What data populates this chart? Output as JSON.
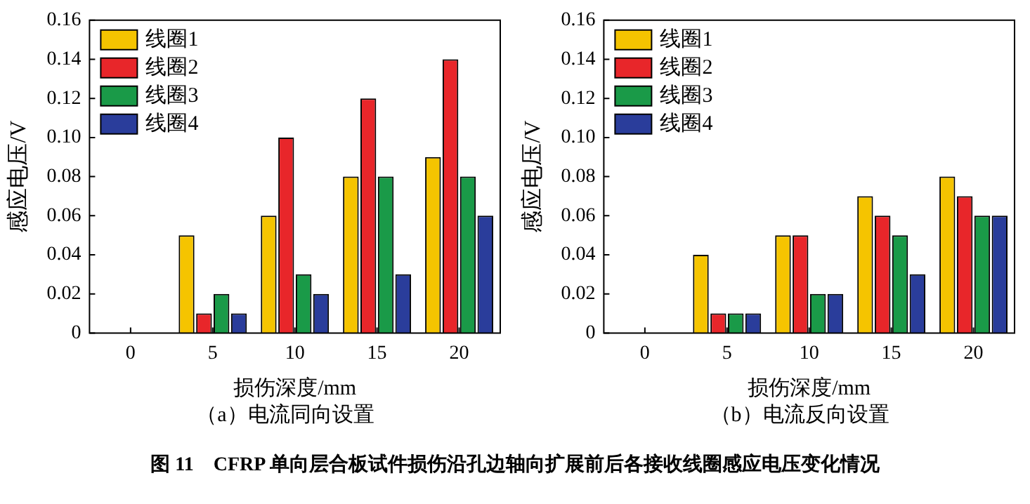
{
  "chart_data": [
    {
      "type": "bar",
      "subtitle": "（a）电流同向设置",
      "xlabel": "损伤深度/mm",
      "ylabel": "感应电压/V",
      "categories": [
        "0",
        "5",
        "10",
        "15",
        "20"
      ],
      "ylim": [
        0,
        0.16
      ],
      "yticks": [
        0,
        0.02,
        0.04,
        0.06,
        0.08,
        {
          "value": 0.1,
          "label": "0.10"
        },
        0.12,
        0.14,
        0.16
      ],
      "grid": false,
      "legend": "top left",
      "series": [
        {
          "name": "线圈1",
          "color": "#f5c400",
          "values": [
            0,
            0.05,
            0.06,
            0.08,
            0.09
          ]
        },
        {
          "name": "线圈2",
          "color": "#e8262a",
          "values": [
            0,
            0.01,
            0.1,
            0.12,
            0.14
          ]
        },
        {
          "name": "线圈3",
          "color": "#1a9a48",
          "values": [
            0,
            0.02,
            0.03,
            0.08,
            0.08
          ]
        },
        {
          "name": "线圈4",
          "color": "#2a3d9b",
          "values": [
            0,
            0.01,
            0.02,
            0.03,
            0.06
          ]
        }
      ],
      "annotations": [
        "图 11　CFRP 单向层合板试件损伤沿孔边轴向扩展前后各接收线圈感应电压变化情况"
      ]
    },
    {
      "type": "bar",
      "subtitle": "（b）电流反向设置",
      "xlabel": "损伤深度/mm",
      "ylabel": "感应电压/V",
      "categories": [
        "0",
        "5",
        "10",
        "15",
        "20"
      ],
      "ylim": [
        0,
        0.16
      ],
      "yticks": [
        0,
        0.02,
        0.04,
        0.06,
        0.08,
        {
          "value": 0.1,
          "label": "0.10"
        },
        0.12,
        0.14,
        0.16
      ],
      "grid": false,
      "legend": "top left",
      "series": [
        {
          "name": "线圈1",
          "color": "#f5c400",
          "values": [
            0,
            0.04,
            0.05,
            0.07,
            0.08
          ]
        },
        {
          "name": "线圈2",
          "color": "#e8262a",
          "values": [
            0,
            0.01,
            0.05,
            0.06,
            0.07
          ]
        },
        {
          "name": "线圈3",
          "color": "#1a9a48",
          "values": [
            0,
            0.01,
            0.02,
            0.05,
            0.06
          ]
        },
        {
          "name": "线圈4",
          "color": "#2a3d9b",
          "values": [
            0,
            0.01,
            0.02,
            0.03,
            0.06
          ]
        }
      ]
    }
  ]
}
